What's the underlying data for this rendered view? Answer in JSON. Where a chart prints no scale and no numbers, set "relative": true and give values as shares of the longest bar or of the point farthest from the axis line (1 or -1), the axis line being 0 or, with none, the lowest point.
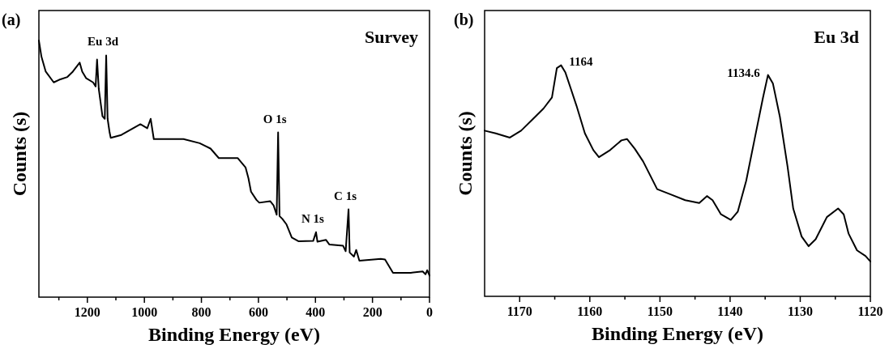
{
  "chart_data": [
    {
      "type": "line",
      "title": "Survey",
      "xlabel": "Binding Energy (eV)",
      "ylabel": "Counts (s)",
      "relative": true,
      "annotations": [
        "(a)",
        {
          "text": "Eu 3d",
          "x": 1134,
          "y": 0.942
        },
        {
          "text": "O 1s",
          "x": 531,
          "y": 0.642
        },
        {
          "text": "N 1s",
          "x": 398,
          "y": 0.253
        },
        {
          "text": "C 1s",
          "x": 284,
          "y": 0.342
        }
      ],
      "xlim": [
        1370,
        0
      ],
      "xticks": [
        {
          "value": 1300,
          "label": null
        },
        1200,
        {
          "value": 1100,
          "label": null
        },
        1000,
        {
          "value": 900,
          "label": null
        },
        800,
        {
          "value": 700,
          "label": null
        },
        600,
        {
          "value": 500,
          "label": null
        },
        400,
        {
          "value": 300,
          "label": null
        },
        200,
        {
          "value": 100,
          "label": null
        },
        0
      ],
      "x": [
        1370,
        1361,
        1346,
        1318,
        1299,
        1270,
        1251,
        1227,
        1218,
        1204,
        1180,
        1171,
        1166,
        1160,
        1147,
        1139,
        1134,
        1129,
        1122,
        1118,
        1081,
        1014,
        990,
        978,
        967,
        939,
        863,
        806,
        768,
        739,
        673,
        645,
        635,
        626,
        607,
        597,
        559,
        547,
        536,
        531,
        526,
        516,
        502,
        483,
        460,
        408,
        398,
        393,
        363,
        351,
        303,
        294,
        284,
        280,
        265,
        257,
        246,
        171,
        156,
        128,
        66,
        24,
        14,
        8,
        0
      ],
      "series": [
        {
          "color": "#000000",
          "values": [
            1.0,
            0.937,
            0.879,
            0.837,
            0.847,
            0.858,
            0.879,
            0.914,
            0.879,
            0.853,
            0.837,
            0.821,
            0.926,
            0.811,
            0.705,
            0.695,
            0.942,
            0.695,
            0.642,
            0.621,
            0.632,
            0.674,
            0.658,
            0.695,
            0.616,
            0.616,
            0.616,
            0.6,
            0.579,
            0.542,
            0.542,
            0.505,
            0.463,
            0.411,
            0.379,
            0.368,
            0.374,
            0.358,
            0.321,
            0.642,
            0.316,
            0.305,
            0.284,
            0.232,
            0.218,
            0.219,
            0.253,
            0.216,
            0.223,
            0.205,
            0.2,
            0.179,
            0.342,
            0.174,
            0.158,
            0.184,
            0.142,
            0.149,
            0.147,
            0.095,
            0.095,
            0.1,
            0.089,
            0.105,
            0.084
          ]
        }
      ]
    },
    {
      "type": "line",
      "title": "Eu 3d",
      "xlabel": "Binding Energy (eV)",
      "ylabel": "Counts (s)",
      "relative": true,
      "annotations": [
        "(b)",
        {
          "text": "1164",
          "x": 1164.1,
          "y": 1.0
        },
        {
          "text": "1134.6",
          "x": 1134.6,
          "y": 0.958
        }
      ],
      "xlim": [
        1175,
        1120
      ],
      "xticks": [
        1170,
        {
          "value": 1165,
          "label": null
        },
        1160,
        {
          "value": 1155,
          "label": null
        },
        1150,
        {
          "value": 1145,
          "label": null
        },
        1140,
        {
          "value": 1135,
          "label": null
        },
        1130,
        {
          "value": 1125,
          "label": null
        },
        1120
      ],
      "x": [
        1175,
        1173.4,
        1171.4,
        1169.8,
        1168.2,
        1166.6,
        1165.4,
        1164.7,
        1164.1,
        1163.5,
        1162.7,
        1161.9,
        1160.7,
        1159.5,
        1158.7,
        1157.1,
        1155.5,
        1154.7,
        1153.6,
        1152.4,
        1151.2,
        1150.4,
        1148.4,
        1146.4,
        1144.4,
        1143.3,
        1142.5,
        1141.3,
        1139.9,
        1138.9,
        1137.7,
        1136.5,
        1135.3,
        1134.6,
        1133.9,
        1132.9,
        1131.8,
        1131,
        1129.8,
        1128.8,
        1127.8,
        1126.2,
        1124.6,
        1123.8,
        1123.1,
        1121.9,
        1120.7,
        1120
      ],
      "series": [
        {
          "color": "#000000",
          "values": [
            0.717,
            0.705,
            0.687,
            0.717,
            0.765,
            0.813,
            0.861,
            0.988,
            1.0,
            0.97,
            0.898,
            0.825,
            0.705,
            0.633,
            0.602,
            0.633,
            0.675,
            0.681,
            0.639,
            0.584,
            0.512,
            0.464,
            0.44,
            0.416,
            0.404,
            0.434,
            0.416,
            0.355,
            0.331,
            0.367,
            0.5,
            0.681,
            0.861,
            0.958,
            0.922,
            0.777,
            0.56,
            0.38,
            0.259,
            0.217,
            0.247,
            0.343,
            0.38,
            0.355,
            0.271,
            0.199,
            0.175,
            0.151
          ]
        }
      ]
    }
  ]
}
